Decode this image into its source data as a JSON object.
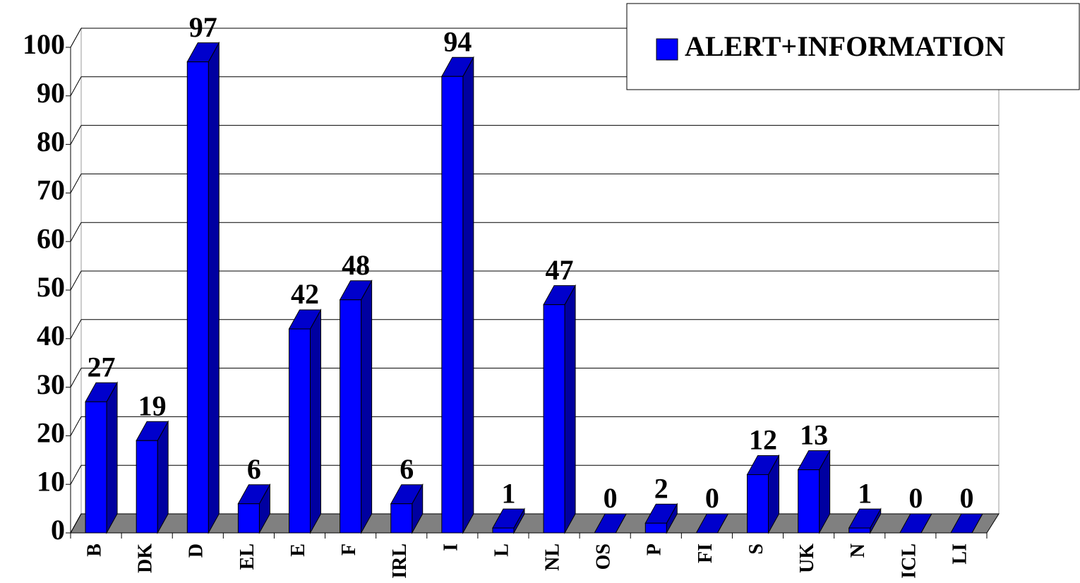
{
  "chart_data": {
    "type": "bar3d",
    "categories": [
      "B",
      "DK",
      "D",
      "EL",
      "E",
      "F",
      "IRL",
      "I",
      "L",
      "NL",
      "OS",
      "P",
      "FI",
      "S",
      "UK",
      "N",
      "ICL",
      "LI"
    ],
    "series": [
      {
        "name": "ALERT+INFORMATION",
        "color": "#0000ff",
        "values": [
          27,
          19,
          97,
          6,
          42,
          48,
          6,
          94,
          1,
          47,
          0,
          2,
          0,
          12,
          13,
          1,
          0,
          0
        ]
      }
    ],
    "ylim": [
      0,
      100
    ],
    "yticks": [
      0,
      10,
      20,
      30,
      40,
      50,
      60,
      70,
      80,
      90,
      100
    ],
    "grid": true,
    "legend": "top-right"
  }
}
